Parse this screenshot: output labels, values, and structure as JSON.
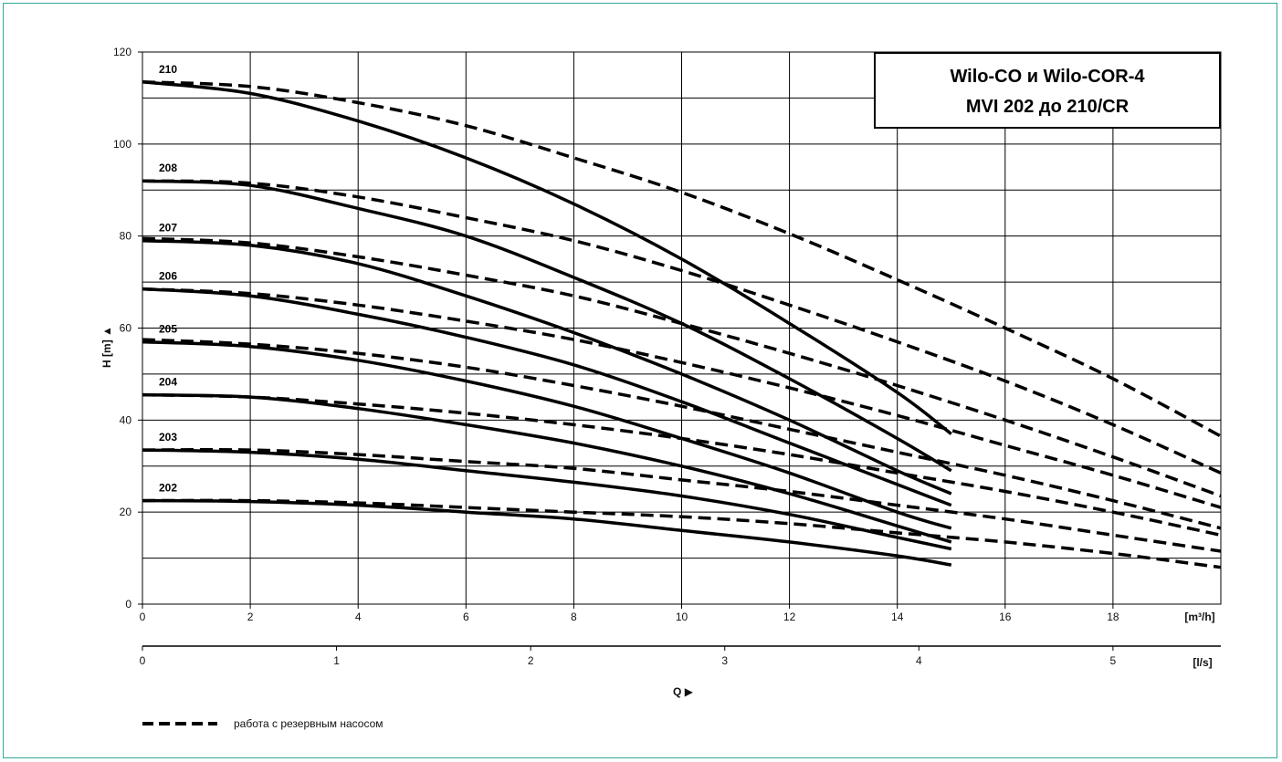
{
  "chart_data": {
    "type": "line",
    "title_lines": [
      "Wilo-CO и Wilo-COR-4",
      "MVI 202 до 210/CR"
    ],
    "ylabel": "H [m] ▲",
    "xlabel": "Q ▶",
    "x_unit": "[m³/h]",
    "x2_unit": "[l/s]",
    "xlim": [
      0,
      20
    ],
    "ylim": [
      0,
      120
    ],
    "x2lim": [
      0,
      5.5556
    ],
    "x_ticks": [
      "0",
      "2",
      "4",
      "6",
      "8",
      "10",
      "12",
      "14",
      "16",
      "18"
    ],
    "x2_ticks": [
      "0",
      "1",
      "2",
      "3",
      "4",
      "5"
    ],
    "y_ticks": [
      "0",
      "20",
      "40",
      "60",
      "80",
      "100",
      "120"
    ],
    "grid": true,
    "legend": {
      "dashed_label": "работа с резервным насосом",
      "placement": "bottom-left"
    },
    "series": [
      {
        "name": "210",
        "single": {
          "x": [
            0,
            2,
            4,
            6,
            8,
            10,
            12,
            14,
            15
          ],
          "y": [
            113.5,
            111,
            105,
            97,
            87,
            75,
            61,
            46,
            37
          ]
        },
        "dashed": {
          "x": [
            0,
            2,
            4,
            6,
            8,
            10,
            12,
            14,
            16,
            18,
            20
          ],
          "y": [
            113.5,
            112.5,
            109,
            104,
            97,
            89.5,
            80.5,
            70.5,
            60,
            49,
            36.5
          ]
        }
      },
      {
        "name": "208",
        "single": {
          "x": [
            0,
            2,
            4,
            6,
            8,
            10,
            12,
            14,
            15
          ],
          "y": [
            92,
            91,
            86,
            80,
            71,
            61,
            49,
            36,
            29
          ]
        },
        "dashed": {
          "x": [
            0,
            2,
            4,
            6,
            8,
            10,
            12,
            14,
            16,
            18,
            20
          ],
          "y": [
            92,
            91.5,
            88.5,
            84,
            79,
            72.5,
            65,
            57,
            48.5,
            39,
            28.5
          ]
        }
      },
      {
        "name": "207",
        "single": {
          "x": [
            0,
            2,
            4,
            6,
            8,
            10,
            12,
            14,
            15
          ],
          "y": [
            79,
            78,
            74,
            67,
            59,
            50,
            40,
            29,
            24
          ]
        },
        "dashed": {
          "x": [
            0,
            2,
            4,
            6,
            8,
            10,
            12,
            14,
            16,
            18,
            20
          ],
          "y": [
            79.5,
            78.5,
            75.5,
            71.5,
            67,
            61,
            54.5,
            47.5,
            40,
            32,
            23.5
          ]
        }
      },
      {
        "name": "206",
        "single": {
          "x": [
            0,
            2,
            4,
            6,
            8,
            10,
            12,
            14,
            15
          ],
          "y": [
            68.5,
            67,
            63,
            58,
            52,
            44,
            35,
            26,
            21.5
          ]
        },
        "dashed": {
          "x": [
            0,
            2,
            4,
            6,
            8,
            10,
            12,
            14,
            16,
            18,
            20
          ],
          "y": [
            68.5,
            67.5,
            65,
            61.5,
            57.5,
            52.5,
            47,
            41,
            34.5,
            28,
            21
          ]
        }
      },
      {
        "name": "205",
        "single": {
          "x": [
            0,
            2,
            4,
            6,
            8,
            10,
            12,
            14,
            15
          ],
          "y": [
            57,
            56,
            53,
            48.5,
            43,
            36,
            28.5,
            20,
            16.5
          ]
        },
        "dashed": {
          "x": [
            0,
            2,
            4,
            6,
            8,
            10,
            12,
            14,
            16,
            18,
            20
          ],
          "y": [
            57.5,
            56.5,
            54.5,
            51.5,
            47.5,
            43,
            38,
            33,
            28,
            22.5,
            16.5
          ]
        }
      },
      {
        "name": "204",
        "single": {
          "x": [
            0,
            2,
            4,
            6,
            8,
            10,
            12,
            14,
            15
          ],
          "y": [
            45.5,
            45,
            42.5,
            39,
            35,
            30,
            24,
            17,
            13.5
          ]
        },
        "dashed": {
          "x": [
            0,
            2,
            4,
            6,
            8,
            10,
            12,
            14,
            16,
            18,
            20
          ],
          "y": [
            45.5,
            45,
            43.5,
            41.5,
            39,
            36,
            32.5,
            28.5,
            24.5,
            20,
            15
          ]
        }
      },
      {
        "name": "203",
        "single": {
          "x": [
            0,
            2,
            4,
            6,
            8,
            10,
            12,
            14,
            15
          ],
          "y": [
            33.5,
            33,
            31.5,
            29,
            26.5,
            23.5,
            19.5,
            14.5,
            12
          ]
        },
        "dashed": {
          "x": [
            0,
            2,
            4,
            6,
            8,
            10,
            12,
            14,
            16,
            18,
            20
          ],
          "y": [
            33.5,
            33.5,
            32.5,
            31,
            29.5,
            27,
            24.5,
            21.5,
            18.5,
            15,
            11.5
          ]
        }
      },
      {
        "name": "202",
        "single": {
          "x": [
            0,
            2,
            4,
            6,
            8,
            10,
            12,
            14,
            15
          ],
          "y": [
            22.5,
            22.3,
            21.5,
            20,
            18.5,
            16,
            13.5,
            10.5,
            8.5
          ]
        },
        "dashed": {
          "x": [
            0,
            2,
            4,
            6,
            8,
            10,
            12,
            14,
            16,
            18,
            20
          ],
          "y": [
            22.5,
            22.5,
            22,
            21,
            20,
            19,
            17.5,
            15.5,
            13.5,
            11,
            8
          ]
        }
      }
    ]
  }
}
